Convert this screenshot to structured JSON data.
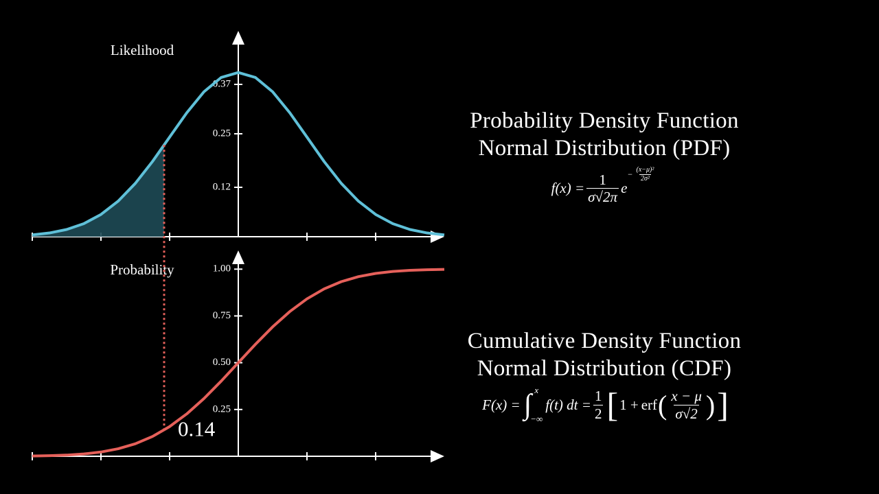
{
  "chart_data": [
    {
      "type": "line",
      "title": "Probability Density Function",
      "subtitle": "Normal Distribution (PDF)",
      "y_label": "Likelihood",
      "x": [
        -3,
        -2.75,
        -2.5,
        -2.25,
        -2,
        -1.75,
        -1.5,
        -1.25,
        -1,
        -0.75,
        -0.5,
        -0.25,
        0,
        0.25,
        0.5,
        0.75,
        1,
        1.25,
        1.5,
        1.75,
        2,
        2.25,
        2.5,
        2.75,
        3
      ],
      "series": [
        {
          "color": "#5fc0d8",
          "values": [
            0.0044,
            0.0091,
            0.0175,
            0.0317,
            0.054,
            0.0863,
            0.1295,
            0.1826,
            0.242,
            0.3011,
            0.3521,
            0.3867,
            0.3989,
            0.3867,
            0.3521,
            0.3011,
            0.242,
            0.1826,
            0.1295,
            0.0863,
            0.054,
            0.0317,
            0.0175,
            0.0091,
            0.0044
          ]
        }
      ],
      "shade_color": "#1e4a55",
      "xlim": [
        -3,
        3
      ],
      "xticks": [
        -3,
        -2,
        -1,
        1,
        2
      ],
      "ylim": [
        0,
        0.5
      ],
      "yticks": [
        0.12,
        0.25,
        0.37
      ],
      "formula": {
        "lhs": "f(x) =",
        "num": "1",
        "den": "σ√2π",
        "base": "e",
        "sign": "−",
        "exp_num": "(x−μ)²",
        "exp_den": "2σ²"
      }
    },
    {
      "type": "line",
      "title": "Cumulative Density Function",
      "subtitle": "Normal Distribution (CDF)",
      "y_label": "Probability",
      "x": [
        -3,
        -2.75,
        -2.5,
        -2.25,
        -2,
        -1.75,
        -1.5,
        -1.25,
        -1,
        -0.75,
        -0.5,
        -0.25,
        0,
        0.25,
        0.5,
        0.75,
        1,
        1.25,
        1.5,
        1.75,
        2,
        2.25,
        2.5,
        2.75,
        3
      ],
      "series": [
        {
          "color": "#e5605a",
          "values": [
            0.0013,
            0.003,
            0.0062,
            0.0122,
            0.0228,
            0.0401,
            0.0668,
            0.1056,
            0.1587,
            0.2266,
            0.3085,
            0.4013,
            0.5,
            0.5987,
            0.6915,
            0.7734,
            0.8413,
            0.8944,
            0.9332,
            0.9599,
            0.9772,
            0.9878,
            0.9938,
            0.997,
            0.9987
          ]
        }
      ],
      "marker": {
        "x": -1.08,
        "value": 0.14
      },
      "xlim": [
        -3,
        3
      ],
      "xticks": [
        -3,
        -2,
        -1,
        1,
        2
      ],
      "ylim": [
        0,
        1.1
      ],
      "yticks": [
        0.25,
        {
          "value": 0.5,
          "label": "0.50"
        },
        0.75,
        {
          "value": 1,
          "label": "1.00"
        }
      ],
      "formula": {
        "lhs": "F(x) =",
        "integral": "∫",
        "upper": "x",
        "lower": "−∞",
        "integrand": "f(t) dt =",
        "half_num": "1",
        "half_den": "2",
        "open_bracket": "[",
        "one_plus": "1 +",
        "erf": "erf",
        "open_paren": "(",
        "frac_num": "x − μ",
        "frac_den": "σ√2",
        "close_paren": ")",
        "close_bracket": "]"
      }
    }
  ]
}
